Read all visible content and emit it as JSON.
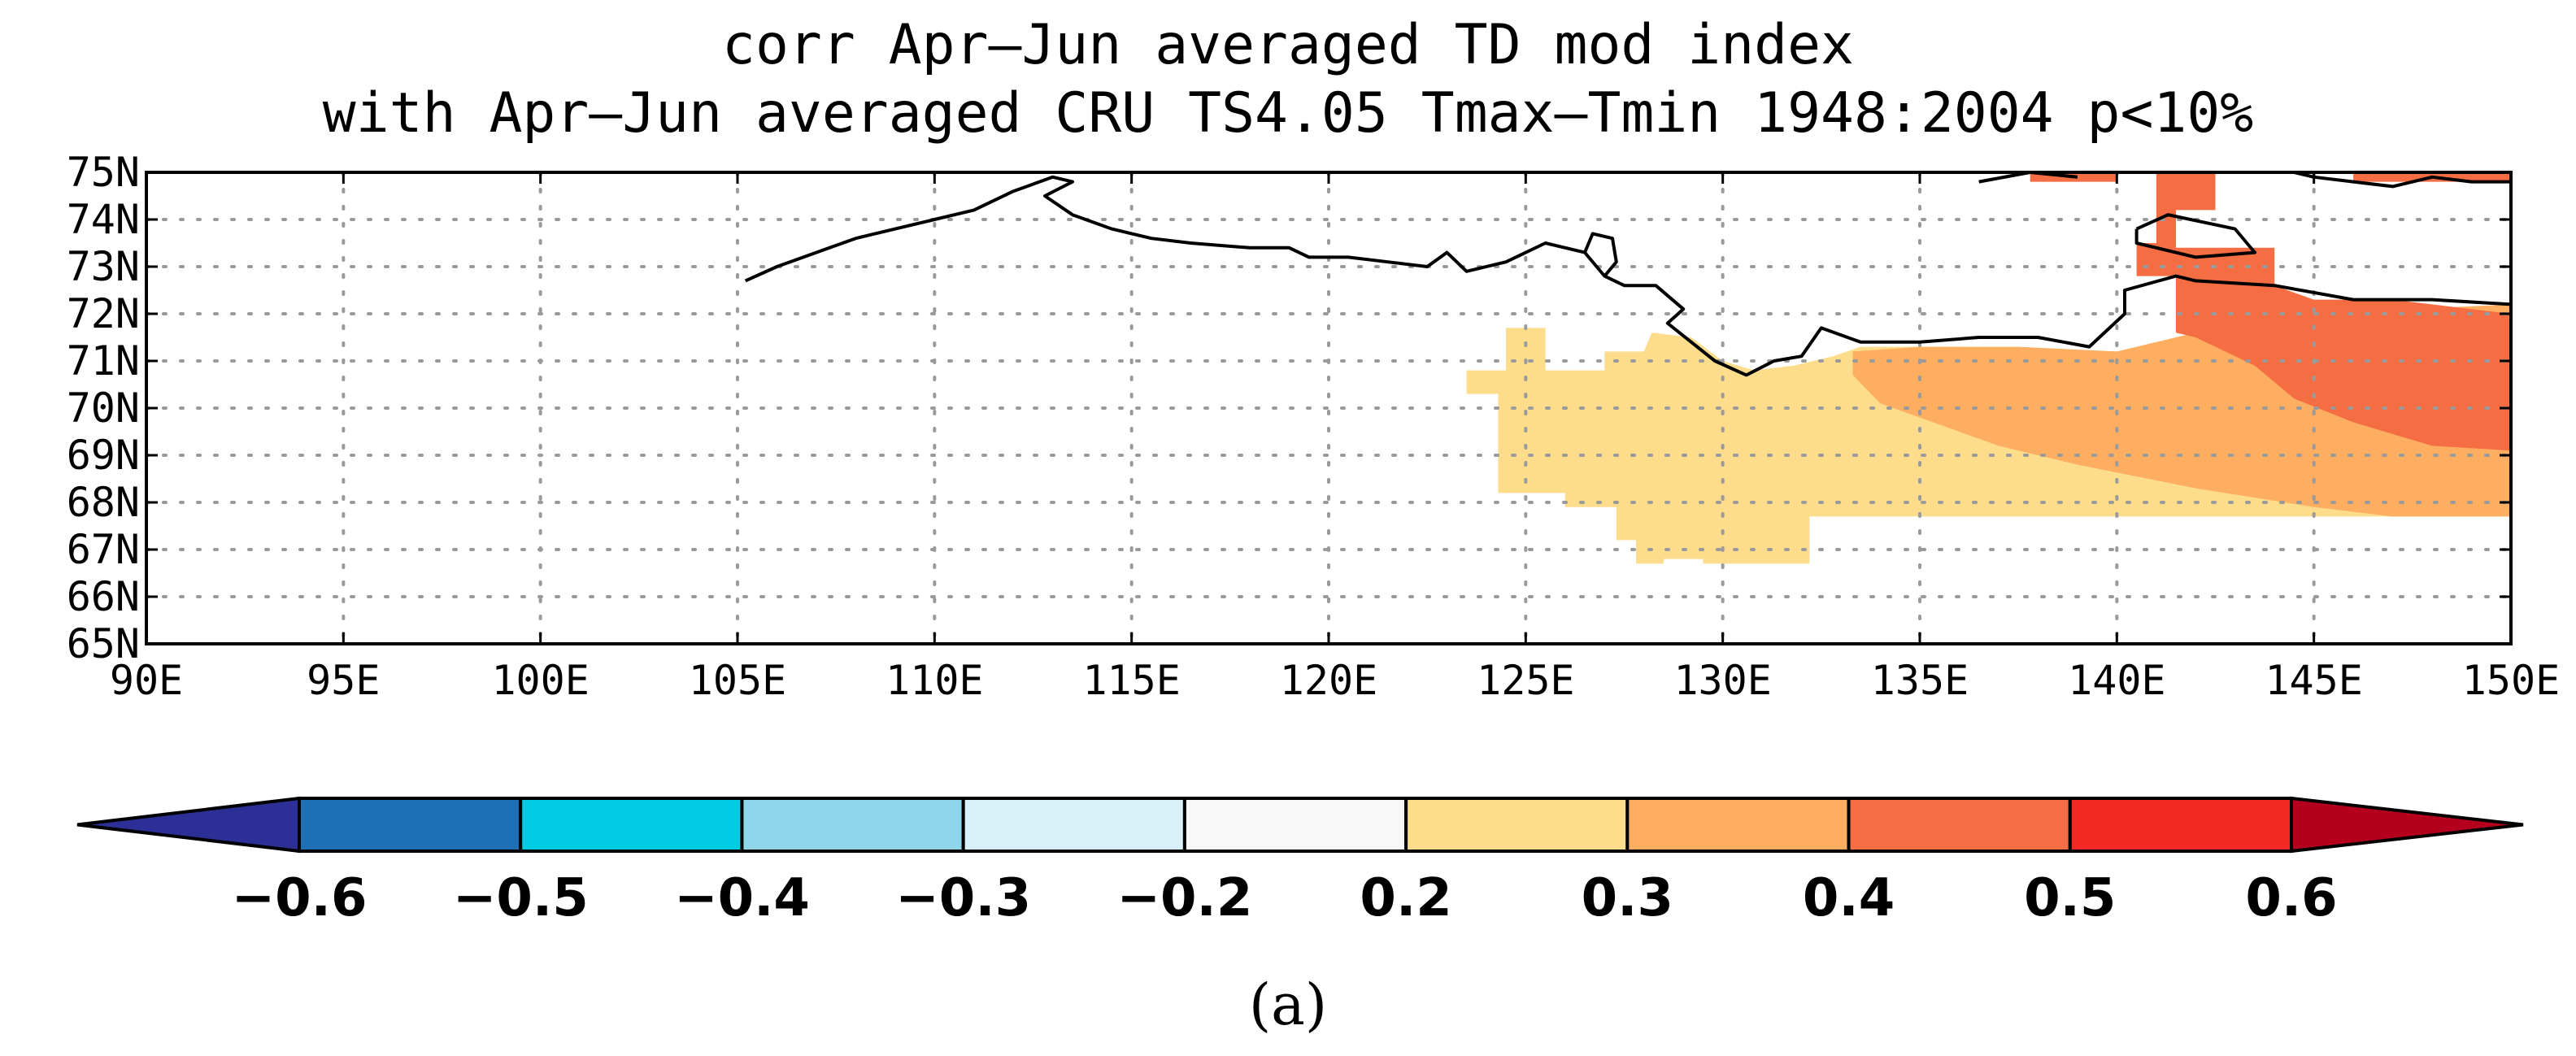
{
  "figure": {
    "title_line1": "corr Apr–Jun averaged TD mod index",
    "title_line2": "with Apr–Jun averaged CRU TS4.05 Tmax–Tmin 1948:2004 p<10%",
    "panel_label": "(a)"
  },
  "map": {
    "lon_range": [
      90,
      150
    ],
    "lat_range": [
      65,
      75
    ],
    "lon_ticks": [
      "90E",
      "95E",
      "100E",
      "105E",
      "110E",
      "115E",
      "120E",
      "125E",
      "130E",
      "135E",
      "140E",
      "145E",
      "150E"
    ],
    "lat_ticks": [
      "65N",
      "66N",
      "67N",
      "68N",
      "69N",
      "70N",
      "71N",
      "72N",
      "73N",
      "74N",
      "75N"
    ],
    "grid": "dotted",
    "correlation_regions": [
      {
        "range": "0.2–0.3",
        "color": "#fddc8c",
        "polygon_lonlat": [
          [
            123.5,
            70.8
          ],
          [
            124.5,
            70.8
          ],
          [
            124.5,
            71.7
          ],
          [
            125.5,
            71.7
          ],
          [
            125.5,
            70.8
          ],
          [
            127,
            70.8
          ],
          [
            127,
            71.2
          ],
          [
            128,
            71.2
          ],
          [
            128.2,
            71.6
          ],
          [
            129.2,
            71.5
          ],
          [
            130,
            71.0
          ],
          [
            130.8,
            70.8
          ],
          [
            131.8,
            70.9
          ],
          [
            132.8,
            71.1
          ],
          [
            133.5,
            71.3
          ],
          [
            136,
            71.3
          ],
          [
            140,
            71.2
          ],
          [
            150,
            71.2
          ],
          [
            150,
            67.7
          ],
          [
            133,
            67.7
          ],
          [
            132.2,
            67.7
          ],
          [
            132.2,
            66.7
          ],
          [
            129.5,
            66.7
          ],
          [
            129.5,
            66.8
          ],
          [
            128.5,
            66.8
          ],
          [
            128.5,
            66.7
          ],
          [
            127.8,
            66.7
          ],
          [
            127.8,
            67.2
          ],
          [
            127.3,
            67.2
          ],
          [
            127.3,
            67.9
          ],
          [
            126,
            67.9
          ],
          [
            126,
            68.2
          ],
          [
            124.3,
            68.2
          ],
          [
            124.3,
            70.3
          ],
          [
            123.5,
            70.3
          ]
        ]
      },
      {
        "range": "0.3–0.4",
        "color": "#fdae61",
        "polygon_lonlat": [
          [
            133.3,
            71.2
          ],
          [
            135,
            71.3
          ],
          [
            137.5,
            71.3
          ],
          [
            140,
            71.2
          ],
          [
            142,
            71.6
          ],
          [
            145,
            72.0
          ],
          [
            150,
            72.2
          ],
          [
            150,
            67.7
          ],
          [
            147,
            67.7
          ],
          [
            145,
            67.9
          ],
          [
            142,
            68.3
          ],
          [
            139,
            68.8
          ],
          [
            137,
            69.2
          ],
          [
            136,
            69.5
          ],
          [
            134,
            70.1
          ],
          [
            133.3,
            70.7
          ]
        ]
      },
      {
        "range": "0.4–0.5",
        "color": "#f46d43",
        "polygon_lonlat": [
          [
            141,
            75
          ],
          [
            142.5,
            75
          ],
          [
            142.5,
            74.2
          ],
          [
            141.5,
            74.2
          ],
          [
            141.5,
            73.4
          ],
          [
            144,
            73.4
          ],
          [
            144,
            72.6
          ],
          [
            145,
            72.3
          ],
          [
            147,
            72.3
          ],
          [
            150,
            72.0
          ],
          [
            150,
            69.1
          ],
          [
            148,
            69.2
          ],
          [
            146,
            69.7
          ],
          [
            144.5,
            70.2
          ],
          [
            143.5,
            70.9
          ],
          [
            142,
            71.5
          ],
          [
            141.5,
            71.6
          ],
          [
            141.5,
            72.8
          ],
          [
            140.5,
            72.8
          ],
          [
            140.5,
            73.5
          ],
          [
            141,
            73.5
          ]
        ]
      },
      {
        "range": "0.4–0.5",
        "color": "#f46d43",
        "polygon_lonlat": [
          [
            137.8,
            75
          ],
          [
            140,
            75
          ],
          [
            140,
            74.8
          ],
          [
            137.8,
            74.8
          ]
        ]
      },
      {
        "range": "0.4–0.5",
        "color": "#f46d43",
        "polygon_lonlat": [
          [
            146,
            75
          ],
          [
            150,
            75
          ],
          [
            150,
            74.8
          ],
          [
            146,
            74.8
          ]
        ]
      }
    ],
    "coastlines_lonlat": [
      [
        [
          105.2,
          72.7
        ],
        [
          106,
          73.0
        ],
        [
          107,
          73.3
        ],
        [
          108,
          73.6
        ],
        [
          109,
          73.8
        ],
        [
          110,
          74.0
        ],
        [
          111,
          74.2
        ],
        [
          112,
          74.6
        ],
        [
          113,
          74.9
        ],
        [
          113.5,
          74.8
        ],
        [
          112.8,
          74.5
        ],
        [
          113.5,
          74.1
        ],
        [
          114.5,
          73.8
        ],
        [
          115.5,
          73.6
        ],
        [
          116.5,
          73.5
        ],
        [
          118,
          73.4
        ],
        [
          119,
          73.4
        ],
        [
          119.5,
          73.2
        ],
        [
          120.5,
          73.2
        ],
        [
          121.5,
          73.1
        ],
        [
          122.5,
          73.0
        ],
        [
          123,
          73.3
        ],
        [
          123.5,
          72.9
        ],
        [
          124.5,
          73.1
        ],
        [
          125.5,
          73.5
        ],
        [
          126.5,
          73.3
        ],
        [
          127,
          72.8
        ],
        [
          127.5,
          72.6
        ],
        [
          128.3,
          72.6
        ],
        [
          129,
          72.1
        ],
        [
          128.6,
          71.8
        ],
        [
          129.2,
          71.4
        ],
        [
          129.8,
          71.0
        ],
        [
          130.6,
          70.7
        ],
        [
          131.3,
          71.0
        ],
        [
          132,
          71.1
        ],
        [
          132.5,
          71.7
        ],
        [
          133.5,
          71.4
        ],
        [
          135,
          71.4
        ],
        [
          136.5,
          71.5
        ],
        [
          138,
          71.5
        ],
        [
          139.3,
          71.3
        ],
        [
          140.2,
          72.0
        ],
        [
          140.2,
          72.5
        ],
        [
          141.5,
          72.8
        ],
        [
          142,
          72.7
        ],
        [
          144,
          72.6
        ],
        [
          146,
          72.3
        ],
        [
          148,
          72.3
        ],
        [
          150,
          72.2
        ]
      ],
      [
        [
          126.5,
          73.3
        ],
        [
          126.7,
          73.7
        ],
        [
          127.2,
          73.6
        ],
        [
          127.3,
          73.1
        ],
        [
          127,
          72.8
        ]
      ],
      [
        [
          140.5,
          73.8
        ],
        [
          141.3,
          74.1
        ],
        [
          143,
          73.8
        ],
        [
          143.5,
          73.3
        ],
        [
          142,
          73.2
        ],
        [
          140.5,
          73.5
        ],
        [
          140.5,
          73.8
        ]
      ],
      [
        [
          144.5,
          75
        ],
        [
          145,
          74.9
        ],
        [
          147,
          74.7
        ],
        [
          148,
          74.9
        ],
        [
          149,
          74.8
        ],
        [
          150,
          74.8
        ]
      ],
      [
        [
          136.5,
          74.8
        ],
        [
          137.8,
          75
        ],
        [
          139,
          74.9
        ]
      ]
    ]
  },
  "colorbar": {
    "labels": [
      "−0.6",
      "−0.5",
      "−0.4",
      "−0.3",
      "−0.2",
      "0.2",
      "0.3",
      "0.4",
      "0.5",
      "0.6"
    ],
    "low_color": "#2c2f96",
    "high_color": "#b4001c",
    "colors": [
      "#1f6fb4",
      "#00cde4",
      "#8fd5ea",
      "#d8f0f8",
      "#f8f8f8",
      "#fddc8c",
      "#fdae61",
      "#f46d43",
      "#f42822"
    ]
  }
}
